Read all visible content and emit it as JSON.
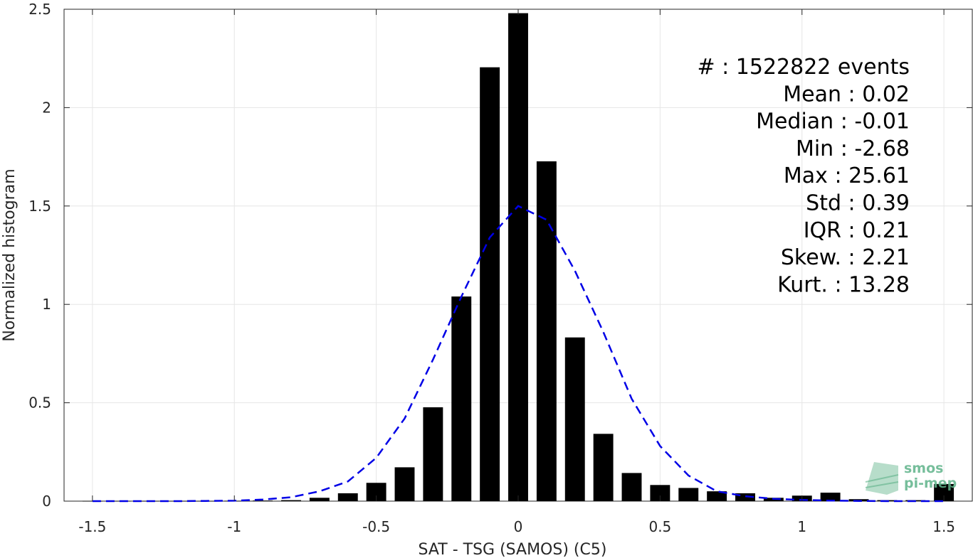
{
  "chart_data": {
    "type": "bar",
    "xlabel": "SAT - TSG (SAMOS) (C5)",
    "ylabel": "Normalized histogram",
    "xlim": [
      -1.6,
      1.6
    ],
    "ylim": [
      0,
      2.5
    ],
    "xticks": [
      -1.5,
      -1,
      -0.5,
      0,
      0.5,
      1,
      1.5
    ],
    "xtick_labels": [
      "-1.5",
      "-1",
      "-0.5",
      "0",
      "0.5",
      "1",
      "1.5"
    ],
    "yticks": [
      0,
      0.5,
      1,
      1.5,
      2,
      2.5
    ],
    "ytick_labels": [
      "0",
      "0.5",
      "1",
      "1.5",
      "2",
      "2.5"
    ],
    "grid": true,
    "bar_width": 0.07,
    "bar_color": "#000000",
    "bars": {
      "x": [
        -1.5,
        -1.4,
        -1.3,
        -1.2,
        -1.1,
        -1.0,
        -0.9,
        -0.8,
        -0.7,
        -0.6,
        -0.5,
        -0.4,
        -0.3,
        -0.2,
        -0.1,
        0.0,
        0.1,
        0.2,
        0.3,
        0.4,
        0.5,
        0.6,
        0.7,
        0.8,
        0.9,
        1.0,
        1.1,
        1.2,
        1.3,
        1.4,
        1.5
      ],
      "values": [
        0.001,
        0.001,
        0.001,
        0.001,
        0.001,
        0.002,
        0.003,
        0.005,
        0.017,
        0.04,
        0.093,
        0.172,
        0.477,
        1.04,
        2.205,
        2.48,
        1.727,
        0.832,
        0.342,
        0.143,
        0.082,
        0.067,
        0.05,
        0.04,
        0.017,
        0.028,
        0.043,
        0.01,
        0.005,
        0.005,
        0.087
      ]
    },
    "fit_curve": {
      "style": "dashed",
      "color": "#0000e6",
      "x": [
        -1.5,
        -1.4,
        -1.3,
        -1.2,
        -1.1,
        -1.0,
        -0.9,
        -0.8,
        -0.7,
        -0.6,
        -0.5,
        -0.4,
        -0.3,
        -0.2,
        -0.1,
        0.0,
        0.1,
        0.2,
        0.3,
        0.4,
        0.5,
        0.6,
        0.7,
        0.8,
        0.9,
        1.0,
        1.1,
        1.2,
        1.3,
        1.4,
        1.5
      ],
      "y": [
        0.0,
        0.0,
        0.0,
        0.0,
        0.001,
        0.002,
        0.008,
        0.02,
        0.05,
        0.1,
        0.22,
        0.42,
        0.72,
        1.04,
        1.34,
        1.5,
        1.43,
        1.17,
        0.86,
        0.52,
        0.28,
        0.13,
        0.05,
        0.025,
        0.012,
        0.006,
        0.003,
        0.001,
        0.0,
        0.0,
        0.0
      ]
    },
    "annotations": [
      "#  : 1522822 events",
      "Mean : 0.02",
      "Median : -0.01",
      "Min : -2.68",
      "Max : 25.61",
      "Std : 0.39",
      "IQR : 0.21",
      "Skew. : 2.21",
      "Kurt. : 13.28"
    ]
  },
  "logo": {
    "line1": "smos",
    "line2": "pi-mep",
    "color": "#5fb38a"
  }
}
